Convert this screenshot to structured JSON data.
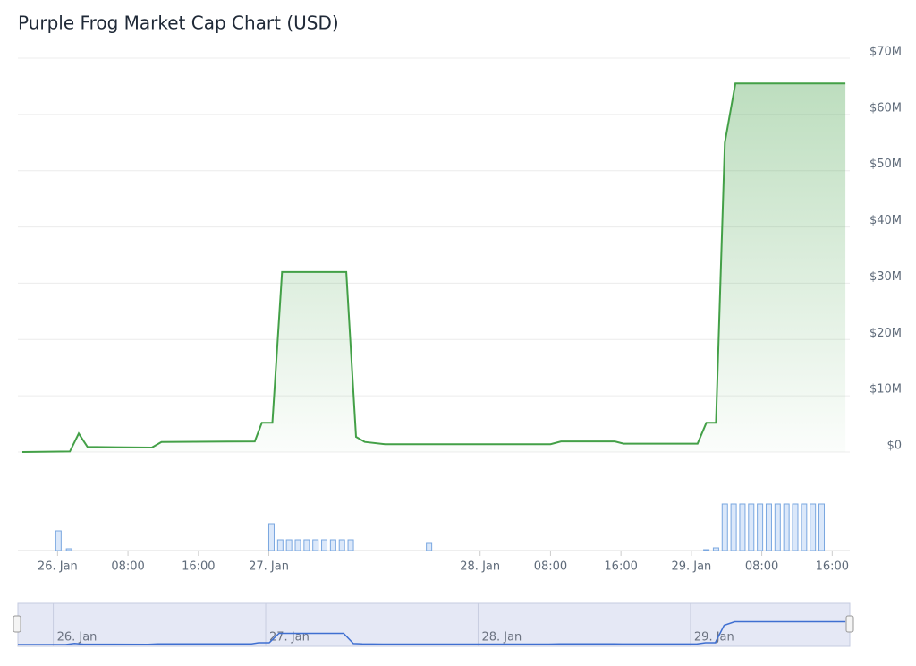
{
  "chart_data": {
    "type": "area",
    "title": "Purple Frog Market Cap Chart (USD)",
    "color": "#43a047",
    "volume_color": "#7aa7e0",
    "navigator_color": "#3f6fd1",
    "grid": true,
    "x": [
      -4,
      1.4,
      2.4,
      3.4,
      10.7,
      11.8,
      22.4,
      23.2,
      24.4,
      25.5,
      32.8,
      33.9,
      34.9,
      37.2,
      56,
      57.2,
      63.3,
      64.3,
      72.7,
      73.7,
      74.8,
      75.8,
      77,
      89.5
    ],
    "values": [
      0,
      100000,
      3300000,
      900000,
      800000,
      1800000,
      1900000,
      5200000,
      5200000,
      32000000,
      32000000,
      2700000,
      1800000,
      1400000,
      1400000,
      1900000,
      1900000,
      1500000,
      1500000,
      5200000,
      5200000,
      55000000,
      65500000,
      65500000
    ],
    "volume": {
      "x": [
        0.1,
        1.3,
        24.3,
        25.3,
        26.3,
        27.3,
        28.3,
        29.3,
        30.3,
        31.3,
        32.3,
        33.3,
        42.2,
        73.7,
        74.8,
        75.8,
        76.8,
        77.8,
        78.8,
        79.8,
        80.8,
        81.8,
        82.8,
        83.8,
        84.8,
        85.8,
        86.8
      ],
      "values": [
        22,
        2,
        30,
        12,
        12,
        12,
        12,
        12,
        12,
        12,
        12,
        12,
        8,
        1,
        3,
        52,
        52,
        52,
        52,
        52,
        52,
        52,
        52,
        52,
        52,
        52,
        52
      ]
    },
    "xlim": [
      -4,
      90
    ],
    "xticks": [
      {
        "value": 0,
        "label": "26. Jan"
      },
      {
        "value": 8,
        "label": "08:00"
      },
      {
        "value": 16,
        "label": "16:00"
      },
      {
        "value": 24,
        "label": "27. Jan"
      },
      {
        "value": 48,
        "label": "28. Jan"
      },
      {
        "value": 56,
        "label": "08:00"
      },
      {
        "value": 64,
        "label": "16:00"
      },
      {
        "value": 72,
        "label": "29. Jan"
      },
      {
        "value": 80,
        "label": "08:00"
      },
      {
        "value": 88,
        "label": "16:00"
      }
    ],
    "ylim": [
      0,
      70000000
    ],
    "yticks": [
      {
        "value": 0,
        "label": "$0"
      },
      {
        "value": 10000000,
        "label": "$10M"
      },
      {
        "value": 20000000,
        "label": "$20M"
      },
      {
        "value": 30000000,
        "label": "$30M"
      },
      {
        "value": 40000000,
        "label": "$40M"
      },
      {
        "value": 50000000,
        "label": "$50M"
      },
      {
        "value": 60000000,
        "label": "$60M"
      },
      {
        "value": 70000000,
        "label": "$70M"
      }
    ]
  }
}
